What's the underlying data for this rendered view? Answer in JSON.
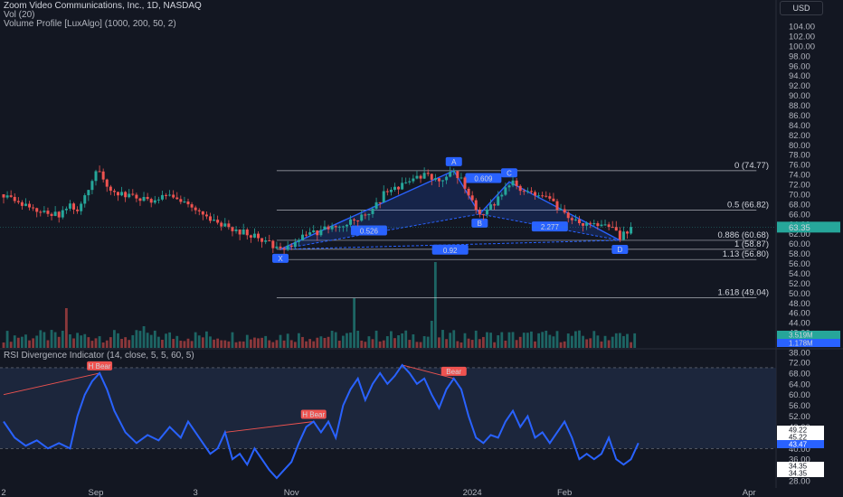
{
  "header": {
    "title": "Zoom Video Communications, Inc., 1D, NASDAQ",
    "volume": "Vol (20)",
    "indicator": "Volume Profile [LuxAlgo] (1000, 200, 50, 2)",
    "rsi_title": "RSI Divergence Indicator (14, close, 5, 5, 60, 5)",
    "currency": "USD"
  },
  "colors": {
    "bg": "#131722",
    "up": "#26a69a",
    "down": "#ef5350",
    "rsi": "#2962ff",
    "pattern": "#2962ff",
    "text": "#b2b5be"
  },
  "chart_data": [
    {
      "type": "candlestick",
      "y_ticks": [
        "104.00",
        "102.00",
        "100.00",
        "98.00",
        "96.00",
        "94.00",
        "92.00",
        "90.00",
        "88.00",
        "86.00",
        "84.00",
        "82.00",
        "80.00",
        "78.00",
        "76.00",
        "74.00",
        "72.00",
        "70.00",
        "68.00",
        "66.00",
        "64.00",
        "62.00",
        "60.00",
        "58.00",
        "56.00",
        "54.00",
        "52.00",
        "50.00",
        "48.00",
        "46.00",
        "44.00",
        "42.00",
        "40.00",
        "38.00"
      ],
      "ylim": [
        37,
        105
      ],
      "x_ticks": [
        "2",
        "Sep",
        "3",
        "Nov",
        "2024",
        "Feb",
        "Apr"
      ],
      "x_tick_index": [
        0,
        25,
        52,
        78,
        127,
        152,
        202
      ],
      "current_price": "63.35",
      "price_series": [
        [
          0,
          70
        ],
        [
          3,
          68.5
        ],
        [
          6,
          67.5
        ],
        [
          9,
          67
        ],
        [
          12,
          66
        ],
        [
          15,
          65.8
        ],
        [
          18,
          68
        ],
        [
          20,
          66.5
        ],
        [
          22,
          70
        ],
        [
          24,
          73
        ],
        [
          25,
          75
        ],
        [
          27,
          73
        ],
        [
          29,
          71
        ],
        [
          32,
          70
        ],
        [
          35,
          69.5
        ],
        [
          38,
          69
        ],
        [
          41,
          68.5
        ],
        [
          44,
          70
        ],
        [
          47,
          68.5
        ],
        [
          50,
          68
        ],
        [
          52,
          67
        ],
        [
          54,
          66.5
        ],
        [
          56,
          64.5
        ],
        [
          58,
          64
        ],
        [
          60,
          63.5
        ],
        [
          62,
          63
        ],
        [
          64,
          62.5
        ],
        [
          66,
          62
        ],
        [
          68,
          61.5
        ],
        [
          70,
          61
        ],
        [
          72,
          60
        ],
        [
          74,
          59
        ],
        [
          75,
          58.87
        ],
        [
          78,
          59.5
        ],
        [
          80,
          61
        ],
        [
          83,
          62
        ],
        [
          86,
          62.5
        ],
        [
          89,
          63.5
        ],
        [
          92,
          64
        ],
        [
          95,
          65
        ],
        [
          97,
          65.5
        ],
        [
          99,
          66.5
        ],
        [
          101,
          68
        ],
        [
          103,
          70
        ],
        [
          105,
          71
        ],
        [
          107,
          71.5
        ],
        [
          109,
          72
        ],
        [
          111,
          73
        ],
        [
          113,
          73.5
        ],
        [
          115,
          74
        ],
        [
          117,
          73
        ],
        [
          119,
          73.5
        ],
        [
          121,
          74
        ],
        [
          122,
          74.77
        ],
        [
          124,
          73
        ],
        [
          126,
          70
        ],
        [
          128,
          67
        ],
        [
          129,
          66
        ],
        [
          131,
          67
        ],
        [
          133,
          68
        ],
        [
          135,
          70
        ],
        [
          137,
          72
        ],
        [
          138,
          72.5
        ],
        [
          140,
          71
        ],
        [
          142,
          70.5
        ],
        [
          144,
          70
        ],
        [
          146,
          69.5
        ],
        [
          148,
          69
        ],
        [
          150,
          67
        ],
        [
          152,
          66
        ],
        [
          154,
          65
        ],
        [
          156,
          64
        ],
        [
          158,
          64.5
        ],
        [
          160,
          64
        ],
        [
          162,
          63.5
        ],
        [
          164,
          63.5
        ],
        [
          166,
          62
        ],
        [
          167,
          60.68
        ],
        [
          168,
          62
        ],
        [
          170,
          63
        ]
      ],
      "fib_levels": [
        {
          "label": "0 (74.77)",
          "value": 74.77
        },
        {
          "label": "0.5 (66.82)",
          "value": 66.82
        },
        {
          "label": "0.886 (60.68)",
          "value": 60.68
        },
        {
          "label": "1 (58.87)",
          "value": 58.87
        },
        {
          "label": "1.13 (56.80)",
          "value": 56.8
        },
        {
          "label": "1.618 (49.04)",
          "value": 49.04
        }
      ],
      "harmonic_pattern": {
        "points": [
          {
            "name": "X",
            "index": 75,
            "value": 58.87
          },
          {
            "name": "A",
            "index": 122,
            "value": 74.77
          },
          {
            "name": "B",
            "index": 129,
            "value": 66.0
          },
          {
            "name": "C",
            "index": 137,
            "value": 72.5
          },
          {
            "name": "D",
            "index": 167,
            "value": 60.68
          }
        ],
        "ratios": [
          {
            "label": "0.526",
            "index": 99,
            "value": 62.6
          },
          {
            "label": "0.609",
            "index": 130,
            "value": 73.2
          },
          {
            "label": "0.92",
            "index": 121,
            "value": 58.7
          },
          {
            "label": "2.277",
            "index": 148,
            "value": 63.4
          }
        ]
      },
      "volume_labels": [
        "3.519M",
        "1.178M"
      ]
    },
    {
      "type": "line",
      "name": "RSI Divergence Indicator",
      "y_ticks": [
        "72.00",
        "68.00",
        "64.00",
        "60.00",
        "56.00",
        "52.00",
        "48.00",
        "44.00",
        "40.00",
        "36.00",
        "32.00",
        "28.00"
      ],
      "ylim": [
        26,
        74
      ],
      "band": [
        40,
        70
      ],
      "value_labels": [
        "49.22",
        "45.22",
        "43.47",
        "34.35",
        "34.35"
      ],
      "rsi_series": [
        [
          0,
          50
        ],
        [
          3,
          44
        ],
        [
          6,
          41
        ],
        [
          9,
          43
        ],
        [
          12,
          40
        ],
        [
          15,
          42
        ],
        [
          18,
          40
        ],
        [
          20,
          52
        ],
        [
          22,
          60
        ],
        [
          24,
          65
        ],
        [
          26,
          68
        ],
        [
          28,
          62
        ],
        [
          30,
          54
        ],
        [
          33,
          46
        ],
        [
          36,
          42
        ],
        [
          39,
          45
        ],
        [
          42,
          43
        ],
        [
          45,
          48
        ],
        [
          48,
          44
        ],
        [
          50,
          50
        ],
        [
          52,
          46
        ],
        [
          54,
          42
        ],
        [
          56,
          38
        ],
        [
          58,
          40
        ],
        [
          60,
          46
        ],
        [
          62,
          36
        ],
        [
          64,
          38
        ],
        [
          66,
          34
        ],
        [
          68,
          40
        ],
        [
          70,
          36
        ],
        [
          72,
          32
        ],
        [
          74,
          29
        ],
        [
          76,
          32
        ],
        [
          78,
          35
        ],
        [
          80,
          42
        ],
        [
          82,
          48
        ],
        [
          84,
          50
        ],
        [
          86,
          46
        ],
        [
          88,
          50
        ],
        [
          90,
          44
        ],
        [
          92,
          56
        ],
        [
          94,
          62
        ],
        [
          96,
          66
        ],
        [
          98,
          58
        ],
        [
          100,
          64
        ],
        [
          102,
          68
        ],
        [
          104,
          64
        ],
        [
          106,
          67
        ],
        [
          108,
          71
        ],
        [
          110,
          68
        ],
        [
          112,
          64
        ],
        [
          114,
          66
        ],
        [
          116,
          60
        ],
        [
          118,
          55
        ],
        [
          120,
          62
        ],
        [
          122,
          66
        ],
        [
          124,
          62
        ],
        [
          126,
          52
        ],
        [
          128,
          44
        ],
        [
          130,
          42
        ],
        [
          132,
          45
        ],
        [
          134,
          44
        ],
        [
          136,
          50
        ],
        [
          138,
          54
        ],
        [
          140,
          48
        ],
        [
          142,
          52
        ],
        [
          144,
          44
        ],
        [
          146,
          46
        ],
        [
          148,
          42
        ],
        [
          150,
          46
        ],
        [
          152,
          50
        ],
        [
          154,
          44
        ],
        [
          156,
          36
        ],
        [
          158,
          38
        ],
        [
          160,
          36
        ],
        [
          162,
          38
        ],
        [
          164,
          44
        ],
        [
          166,
          36
        ],
        [
          168,
          34
        ],
        [
          170,
          36
        ],
        [
          172,
          42
        ]
      ],
      "labels": [
        {
          "text": "H Bear",
          "index": 26,
          "value": 68
        },
        {
          "text": "H Bear",
          "index": 84,
          "value": 50
        },
        {
          "text": "Bear",
          "index": 122,
          "value": 66
        }
      ],
      "divergences": [
        {
          "from": [
            0,
            60
          ],
          "to": [
            26,
            68
          ]
        },
        {
          "from": [
            60,
            46
          ],
          "to": [
            84,
            50
          ]
        },
        {
          "from": [
            108,
            71
          ],
          "to": [
            122,
            66
          ]
        }
      ]
    }
  ]
}
